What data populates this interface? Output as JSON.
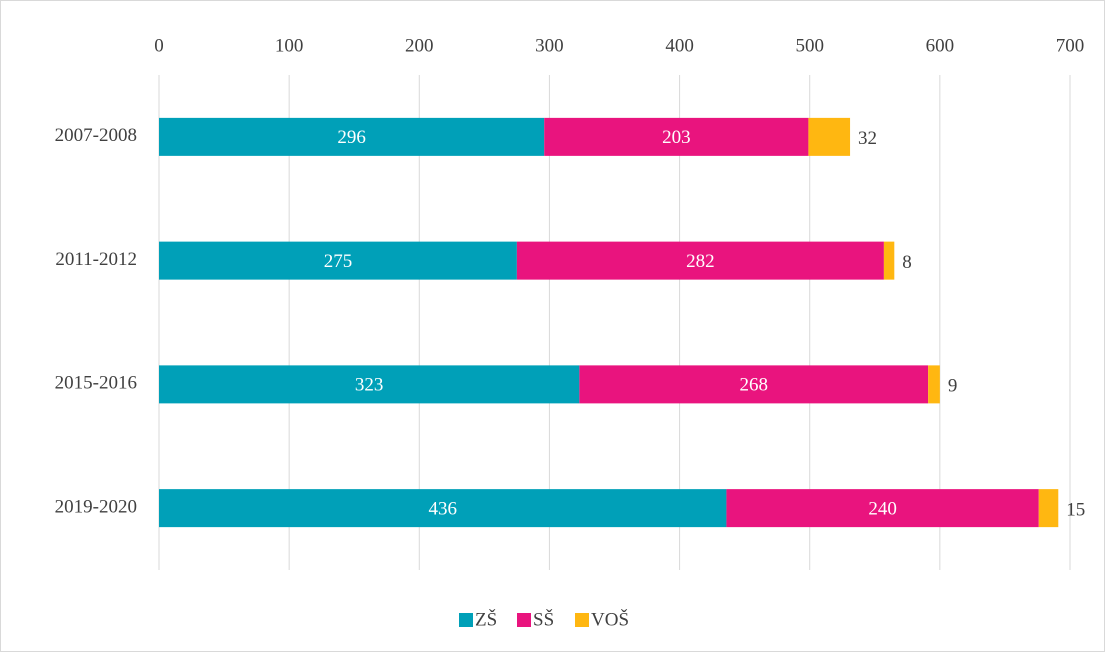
{
  "chart_data": {
    "type": "bar",
    "orientation": "horizontal",
    "stacked": true,
    "categories": [
      "2007-2008",
      "2011-2012",
      "2015-2016",
      "2019-2020"
    ],
    "series": [
      {
        "name": "ZŠ",
        "color": "#00a0b8",
        "values": [
          296,
          275,
          323,
          436
        ]
      },
      {
        "name": "SŠ",
        "color": "#e9147e",
        "values": [
          203,
          282,
          268,
          240
        ]
      },
      {
        "name": "VOŠ",
        "color": "#ffb711",
        "values": [
          32,
          8,
          9,
          15
        ]
      }
    ],
    "xlim": [
      0,
      700
    ],
    "xticks": [
      0,
      100,
      200,
      300,
      400,
      500,
      600,
      700
    ],
    "grid": true,
    "legend": "bottom"
  }
}
